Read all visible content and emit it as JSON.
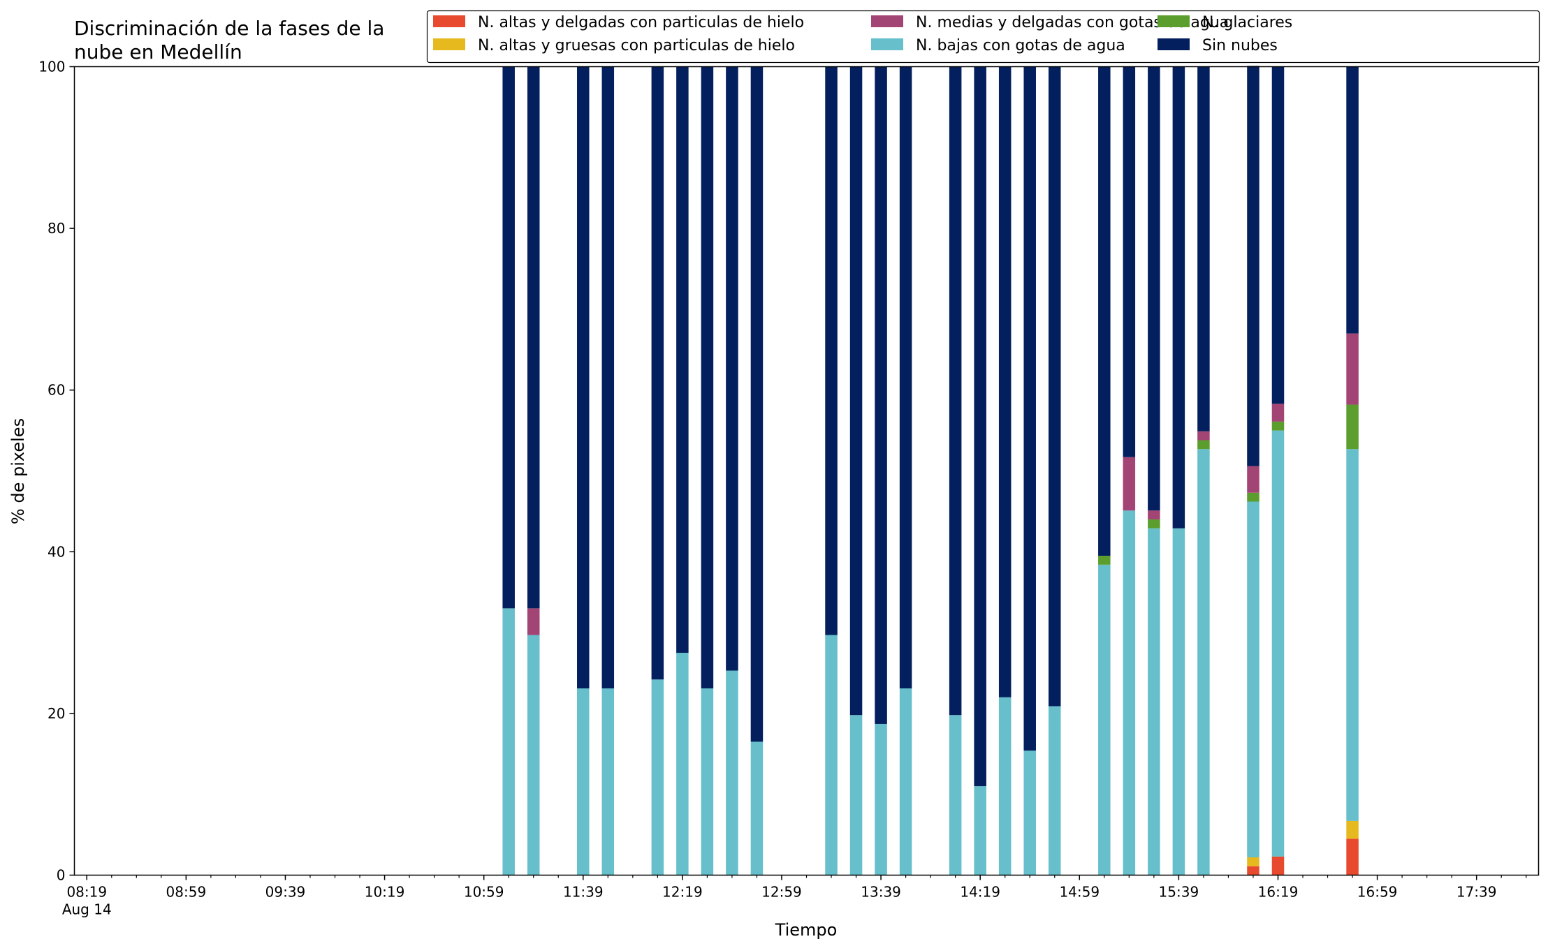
{
  "chart_data": {
    "type": "bar",
    "stacked": true,
    "title": "Discriminación de la fases de la\nnube en Medellín",
    "xlabel": "Tiempo",
    "ylabel": "% de pixeles",
    "ylim": [
      0,
      100
    ],
    "xlim": [
      "08:14",
      "18:04"
    ],
    "yticks": [
      0,
      20,
      40,
      60,
      80,
      100
    ],
    "xticks": [
      {
        "time": "08:19",
        "label": "08:19",
        "sublabel": "Aug 14"
      },
      {
        "time": "08:59",
        "label": "08:59"
      },
      {
        "time": "09:39",
        "label": "09:39"
      },
      {
        "time": "10:19",
        "label": "10:19"
      },
      {
        "time": "10:59",
        "label": "10:59"
      },
      {
        "time": "11:39",
        "label": "11:39"
      },
      {
        "time": "12:19",
        "label": "12:19"
      },
      {
        "time": "12:59",
        "label": "12:59"
      },
      {
        "time": "13:39",
        "label": "13:39"
      },
      {
        "time": "14:19",
        "label": "14:19"
      },
      {
        "time": "14:59",
        "label": "14:59"
      },
      {
        "time": "15:39",
        "label": "15:39"
      },
      {
        "time": "16:19",
        "label": "16:19"
      },
      {
        "time": "16:59",
        "label": "16:59"
      },
      {
        "time": "17:39",
        "label": "17:39"
      }
    ],
    "legend_position": "top-right",
    "x": [
      "11:09",
      "11:19",
      "11:39",
      "11:49",
      "12:09",
      "12:19",
      "12:29",
      "12:39",
      "12:49",
      "13:19",
      "13:29",
      "13:39",
      "13:49",
      "14:09",
      "14:19",
      "14:29",
      "14:39",
      "14:49",
      "15:09",
      "15:19",
      "15:29",
      "15:39",
      "15:49",
      "16:09",
      "16:19",
      "16:49"
    ],
    "series": [
      {
        "name": "N. altas y delgadas con particulas de hielo",
        "color": "#e84a2f",
        "values": [
          0,
          0,
          0,
          0,
          0,
          0,
          0,
          0,
          0,
          0,
          0,
          0,
          0,
          0,
          0,
          0,
          0,
          0,
          0,
          0,
          0,
          0,
          0,
          1.1,
          2.3,
          4.5
        ]
      },
      {
        "name": "N. altas y gruesas con particulas de hielo",
        "color": "#e6b91e",
        "values": [
          0,
          0,
          0,
          0,
          0,
          0,
          0,
          0,
          0,
          0,
          0,
          0,
          0,
          0,
          0,
          0,
          0,
          0,
          0,
          0,
          0,
          0,
          0,
          1.1,
          0,
          2.2
        ]
      },
      {
        "name": "N. bajas con gotas de agua",
        "color": "#66bfcb",
        "values": [
          33.0,
          29.7,
          23.1,
          23.1,
          24.2,
          27.5,
          23.1,
          25.3,
          16.5,
          29.7,
          19.8,
          18.7,
          23.1,
          19.8,
          11.0,
          22.0,
          15.4,
          20.9,
          38.4,
          45.1,
          42.9,
          42.9,
          52.7,
          44.0,
          52.7,
          46.0
        ]
      },
      {
        "name": "N. glaciares",
        "color": "#5c9e2e",
        "values": [
          0,
          0,
          0,
          0,
          0,
          0,
          0,
          0,
          0,
          0,
          0,
          0,
          0,
          0,
          0,
          0,
          0,
          0,
          1.1,
          0,
          1.1,
          0,
          1.1,
          1.1,
          1.1,
          5.5
        ]
      },
      {
        "name": "N. medias y delgadas con gotas de agua",
        "color": "#a24474",
        "values": [
          0,
          3.3,
          0,
          0,
          0,
          0,
          0,
          0,
          0,
          0,
          0,
          0,
          0,
          0,
          0,
          0,
          0,
          0,
          0,
          6.6,
          1.1,
          0,
          1.1,
          3.3,
          2.2,
          8.8
        ]
      },
      {
        "name": "Sin nubes",
        "color": "#031f5e",
        "values": [
          67.0,
          67.0,
          76.9,
          76.9,
          75.8,
          72.5,
          76.9,
          74.7,
          83.5,
          70.3,
          80.2,
          81.3,
          76.9,
          80.2,
          89.0,
          78.0,
          84.6,
          79.1,
          60.5,
          48.3,
          54.9,
          57.1,
          45.1,
          49.5,
          41.7,
          33.0
        ]
      }
    ],
    "legend_order": [
      0,
      1,
      4,
      2,
      3,
      5
    ]
  }
}
